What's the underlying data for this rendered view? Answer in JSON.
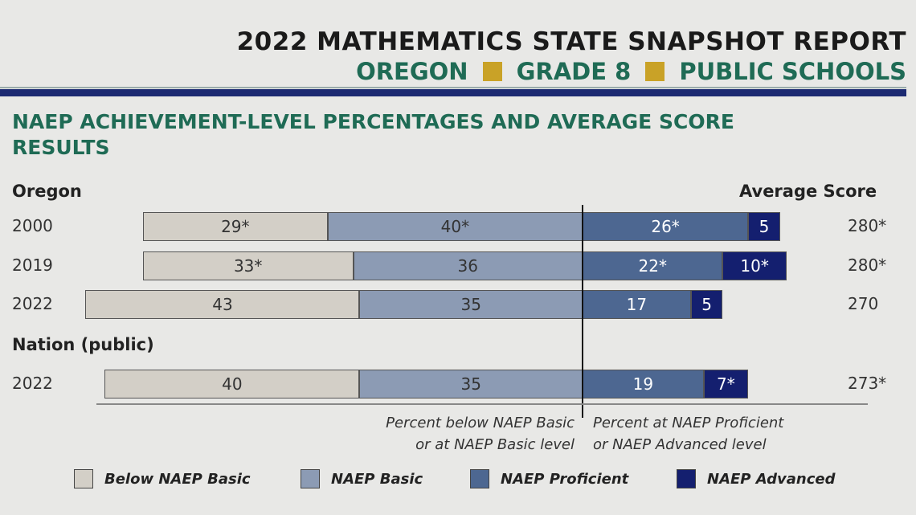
{
  "header": {
    "title": "2022 MATHEMATICS STATE SNAPSHOT REPORT",
    "state": "OREGON",
    "grade": "GRADE 8",
    "schools": "PUBLIC SCHOOLS"
  },
  "section_heading": "NAEP ACHIEVEMENT-LEVEL PERCENTAGES AND AVERAGE SCORE RESULTS",
  "colors": {
    "below_basic": "#d3cfc7",
    "basic": "#8c9bb4",
    "proficient": "#4d6791",
    "advanced": "#141f6f"
  },
  "chart_data": {
    "type": "bar",
    "stacked": "diverging",
    "groups": [
      {
        "label": "Oregon",
        "rows": [
          0,
          1,
          2
        ]
      },
      {
        "label": "Nation (public)",
        "rows": [
          3
        ]
      }
    ],
    "score_header": "Average Score",
    "rows": [
      {
        "year": "2000",
        "below_basic": "29*",
        "basic": "40*",
        "proficient": "26*",
        "advanced": "5",
        "score": "280*"
      },
      {
        "year": "2019",
        "below_basic": "33*",
        "basic": "36",
        "proficient": "22*",
        "advanced": "10*",
        "score": "280*"
      },
      {
        "year": "2022",
        "below_basic": "43",
        "basic": "35",
        "proficient": "17",
        "advanced": "5",
        "score": "270"
      },
      {
        "year": "2022",
        "below_basic": "40",
        "basic": "35",
        "proficient": "19",
        "advanced": "7*",
        "score": "273*"
      }
    ],
    "left_note": [
      "Percent below NAEP Basic",
      "or at NAEP Basic level"
    ],
    "right_note": [
      "Percent at NAEP Proficient",
      "or NAEP Advanced level"
    ],
    "legend": [
      "Below NAEP Basic",
      "NAEP Basic",
      "NAEP Proficient",
      "NAEP Advanced"
    ]
  }
}
